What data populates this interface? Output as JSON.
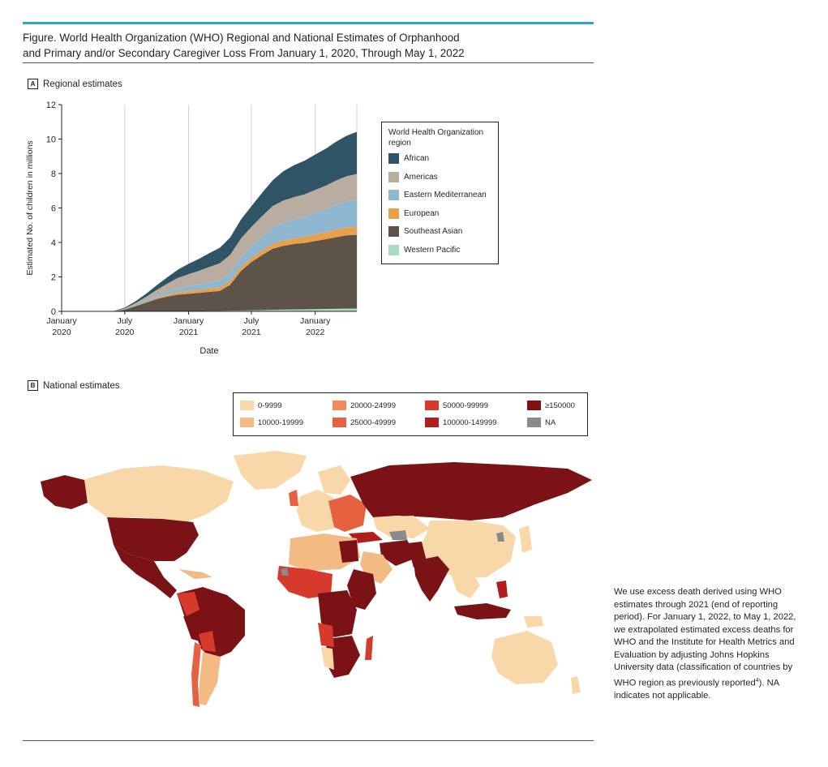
{
  "figure": {
    "title_line1": "Figure. World Health Organization (WHO) Regional and National Estimates of Orphanhood",
    "title_line2": "and Primary and/or Secondary Caregiver Loss From January 1, 2020, Through May 1, 2022"
  },
  "panel_a": {
    "letter": "A",
    "label": "Regional estimates"
  },
  "panel_b": {
    "letter": "B",
    "label": "National estimates"
  },
  "chart_data": [
    {
      "type": "area",
      "stacked": true,
      "title": "Regional estimates",
      "xlabel": "Date",
      "ylabel": "Estimated No. of children in millions",
      "ylim": [
        0,
        12
      ],
      "yticks": [
        0,
        2,
        4,
        6,
        8,
        10,
        12
      ],
      "xlim": [
        "2020-01-01",
        "2022-05-01"
      ],
      "xticks": [
        {
          "date": "2020-01-01",
          "line1": "January",
          "line2": "2020"
        },
        {
          "date": "2020-07-01",
          "line1": "July",
          "line2": "2020"
        },
        {
          "date": "2021-01-01",
          "line1": "January",
          "line2": "2021"
        },
        {
          "date": "2021-07-01",
          "line1": "July",
          "line2": "2021"
        },
        {
          "date": "2022-01-01",
          "line1": "January",
          "line2": "2022"
        }
      ],
      "grid": "vertical",
      "legend_title": "World Health Organization region",
      "legend_position": "right",
      "x": [
        "2020-01-01",
        "2020-03-01",
        "2020-05-01",
        "2020-06-01",
        "2020-07-01",
        "2020-08-01",
        "2020-09-01",
        "2020-10-01",
        "2020-11-01",
        "2020-12-01",
        "2021-01-01",
        "2021-02-01",
        "2021-03-01",
        "2021-04-01",
        "2021-05-01",
        "2021-06-01",
        "2021-07-01",
        "2021-08-01",
        "2021-09-01",
        "2021-10-01",
        "2021-11-01",
        "2021-12-01",
        "2022-01-01",
        "2022-02-01",
        "2022-03-01",
        "2022-04-01",
        "2022-05-01"
      ],
      "series": [
        {
          "name": "Western Pacific",
          "color": "#a8dcc0",
          "values": [
            0,
            0,
            0,
            0,
            0,
            0,
            0.01,
            0.01,
            0.01,
            0.02,
            0.02,
            0.02,
            0.03,
            0.03,
            0.04,
            0.05,
            0.06,
            0.07,
            0.09,
            0.1,
            0.11,
            0.12,
            0.13,
            0.14,
            0.15,
            0.16,
            0.16
          ]
        },
        {
          "name": "Southeast Asian",
          "color": "#5e5348",
          "values": [
            0,
            0,
            0,
            0.01,
            0.1,
            0.3,
            0.5,
            0.7,
            0.85,
            0.95,
            1.0,
            1.05,
            1.1,
            1.15,
            1.5,
            2.3,
            2.8,
            3.2,
            3.55,
            3.7,
            3.8,
            3.85,
            3.95,
            4.05,
            4.15,
            4.25,
            4.28
          ]
        },
        {
          "name": "European",
          "color": "#e8a04a",
          "values": [
            0,
            0,
            0,
            0,
            0,
            0.01,
            0.03,
            0.06,
            0.1,
            0.13,
            0.15,
            0.17,
            0.19,
            0.21,
            0.22,
            0.23,
            0.24,
            0.26,
            0.28,
            0.3,
            0.32,
            0.35,
            0.38,
            0.4,
            0.43,
            0.45,
            0.46
          ]
        },
        {
          "name": "Eastern Mediterranean",
          "color": "#8fb8d0",
          "values": [
            0,
            0,
            0,
            0,
            0.02,
            0.05,
            0.09,
            0.13,
            0.17,
            0.22,
            0.27,
            0.32,
            0.37,
            0.42,
            0.48,
            0.55,
            0.65,
            0.8,
            0.95,
            1.05,
            1.1,
            1.15,
            1.25,
            1.35,
            1.45,
            1.53,
            1.57
          ]
        },
        {
          "name": "Americas",
          "color": "#b8ada0",
          "values": [
            0,
            0,
            0,
            0,
            0.05,
            0.12,
            0.22,
            0.34,
            0.48,
            0.62,
            0.72,
            0.8,
            0.88,
            0.98,
            1.05,
            1.1,
            1.15,
            1.2,
            1.25,
            1.28,
            1.3,
            1.32,
            1.34,
            1.36,
            1.4,
            1.45,
            1.5
          ]
        },
        {
          "name": "African",
          "color": "#2f5465",
          "values": [
            0,
            0,
            0,
            0.02,
            0.05,
            0.1,
            0.18,
            0.27,
            0.37,
            0.48,
            0.6,
            0.7,
            0.8,
            0.9,
            1.0,
            1.1,
            1.2,
            1.35,
            1.5,
            1.7,
            1.85,
            1.95,
            2.05,
            2.15,
            2.25,
            2.35,
            2.45
          ]
        }
      ]
    },
    {
      "type": "choropleth",
      "title": "National estimates",
      "legend_position": "top",
      "bins": [
        {
          "label": "0-9999",
          "color": "#f8d7a9"
        },
        {
          "label": "10000-19999",
          "color": "#f4ba84"
        },
        {
          "label": "20000-24999",
          "color": "#ef8c5a"
        },
        {
          "label": "25000-49999",
          "color": "#e6613f"
        },
        {
          "label": "50000-99999",
          "color": "#d63a2c"
        },
        {
          "label": "100000-149999",
          "color": "#b01e1e"
        },
        {
          "label": "≥150000",
          "color": "#7a1216"
        },
        {
          "label": "NA",
          "color": "#8a8a8a"
        }
      ]
    }
  ],
  "note": {
    "text": "We use excess death derived using WHO estimates through 2021 (end of reporting period). For January 1, 2022, to May 1, 2022, we extrapolated estimated excess deaths for WHO and the Institute for Health Metrics and Evaluation by adjusting Johns Hopkins University data (classification of countries by WHO region as previously reported",
    "superscript": "4",
    "end": "). NA indicates not applicable."
  }
}
